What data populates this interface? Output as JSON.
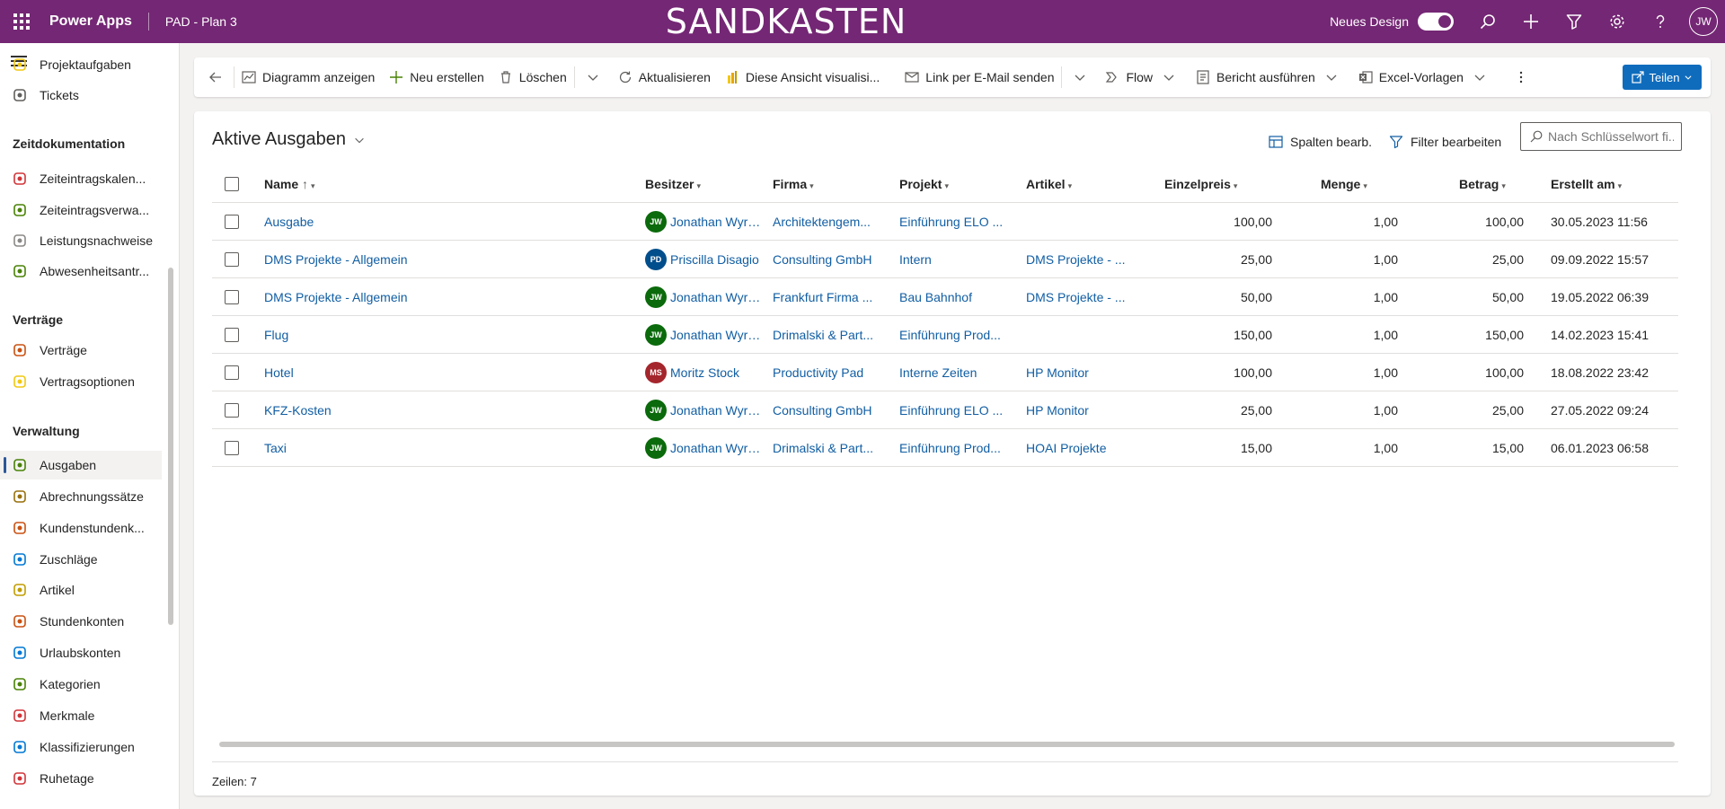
{
  "header": {
    "app_name": "Power Apps",
    "environment": "PAD - Plan 3",
    "banner": "SANDKASTEN",
    "new_design_label": "Neues Design",
    "user_initials": "JW"
  },
  "sidebar": {
    "items": [
      {
        "label": "Projektaufgaben",
        "icon": "tasks-icon",
        "color": "#f2c811"
      },
      {
        "label": "Tickets",
        "icon": "ticket-icon",
        "color": "#605e5c"
      },
      {
        "group": "Zeitdokumentation"
      },
      {
        "label": "Zeiteintragskalen...",
        "icon": "clock-icon",
        "color": "#d13438"
      },
      {
        "label": "Zeiteintragsverwa...",
        "icon": "tools-icon",
        "color": "#498205"
      },
      {
        "label": "Leistungsnachweise",
        "icon": "list-icon",
        "color": "#8a8886"
      },
      {
        "label": "Abwesenheitsantr...",
        "icon": "palm-icon",
        "color": "#498205"
      },
      {
        "group": "Verträge"
      },
      {
        "label": "Verträge",
        "icon": "contract-icon",
        "color": "#ca5010"
      },
      {
        "label": "Vertragsoptionen",
        "icon": "tag-icon",
        "color": "#f2c811"
      },
      {
        "group": "Verwaltung"
      },
      {
        "label": "Ausgaben",
        "icon": "money-icon",
        "color": "#498205",
        "active": true
      },
      {
        "label": "Abrechnungssätze",
        "icon": "stopwatch-icon",
        "color": "#986f0b"
      },
      {
        "label": "Kundenstundenk...",
        "icon": "hours-icon",
        "color": "#ca5010"
      },
      {
        "label": "Zuschläge",
        "icon": "surcharge-icon",
        "color": "#0078d4"
      },
      {
        "label": "Artikel",
        "icon": "article-icon",
        "color": "#c19c00"
      },
      {
        "label": "Stundenkonten",
        "icon": "timer-icon",
        "color": "#ca5010"
      },
      {
        "label": "Urlaubskonten",
        "icon": "vacation-icon",
        "color": "#0078d4"
      },
      {
        "label": "Kategorien",
        "icon": "category-icon",
        "color": "#498205"
      },
      {
        "label": "Merkmale",
        "icon": "feature-icon",
        "color": "#d13438"
      },
      {
        "label": "Klassifizierungen",
        "icon": "classification-icon",
        "color": "#0078d4"
      },
      {
        "label": "Ruhetage",
        "icon": "calendar-icon",
        "color": "#d13438"
      }
    ]
  },
  "commands": {
    "show_chart": "Diagramm anzeigen",
    "new": "Neu erstellen",
    "delete": "Löschen",
    "refresh": "Aktualisieren",
    "visualize": "Diese Ansicht visualisi...",
    "email_link": "Link per E-Mail senden",
    "flow": "Flow",
    "run_report": "Bericht ausführen",
    "excel_templates": "Excel-Vorlagen",
    "share": "Teilen"
  },
  "view": {
    "title": "Aktive Ausgaben",
    "edit_columns": "Spalten bearb.",
    "edit_filters": "Filter bearbeiten",
    "search_placeholder": "Nach Schlüsselwort fi..."
  },
  "table": {
    "columns": {
      "name": "Name",
      "owner": "Besitzer",
      "company": "Firma",
      "project": "Projekt",
      "article": "Artikel",
      "unit_price": "Einzelpreis",
      "quantity": "Menge",
      "amount": "Betrag",
      "created": "Erstellt am"
    },
    "rows": [
      {
        "name": "Ausgabe",
        "owner_initials": "JW",
        "owner_color": "#0b6a0b",
        "owner": "Jonathan Wyrwi...",
        "company": "Architektengem...",
        "project": "Einführung ELO ...",
        "article": "",
        "unit_price": "100,00",
        "quantity": "1,00",
        "amount": "100,00",
        "created": "30.05.2023 11:56"
      },
      {
        "name": "DMS Projekte - Allgemein",
        "owner_initials": "PD",
        "owner_color": "#004e8c",
        "owner": "Priscilla Disagio",
        "company": "Consulting GmbH",
        "project": "Intern",
        "article": "DMS Projekte - ...",
        "unit_price": "25,00",
        "quantity": "1,00",
        "amount": "25,00",
        "created": "09.09.2022 15:57"
      },
      {
        "name": "DMS Projekte - Allgemein",
        "owner_initials": "JW",
        "owner_color": "#0b6a0b",
        "owner": "Jonathan Wyrwi...",
        "company": "Frankfurt Firma ...",
        "project": "Bau Bahnhof",
        "article": "DMS Projekte - ...",
        "unit_price": "50,00",
        "quantity": "1,00",
        "amount": "50,00",
        "created": "19.05.2022 06:39"
      },
      {
        "name": "Flug",
        "owner_initials": "JW",
        "owner_color": "#0b6a0b",
        "owner": "Jonathan Wyrwi...",
        "company": "Drimalski & Part...",
        "project": "Einführung Prod...",
        "article": "",
        "unit_price": "150,00",
        "quantity": "1,00",
        "amount": "150,00",
        "created": "14.02.2023 15:41"
      },
      {
        "name": "Hotel",
        "owner_initials": "MS",
        "owner_color": "#a4262c",
        "owner": "Moritz Stock",
        "company": "Productivity Pad",
        "project": "Interne Zeiten",
        "article": "HP Monitor",
        "unit_price": "100,00",
        "quantity": "1,00",
        "amount": "100,00",
        "created": "18.08.2022 23:42"
      },
      {
        "name": "KFZ-Kosten",
        "owner_initials": "JW",
        "owner_color": "#0b6a0b",
        "owner": "Jonathan Wyrwi...",
        "company": "Consulting GmbH",
        "project": "Einführung ELO ...",
        "article": "HP Monitor",
        "unit_price": "25,00",
        "quantity": "1,00",
        "amount": "25,00",
        "created": "27.05.2022 09:24"
      },
      {
        "name": "Taxi",
        "owner_initials": "JW",
        "owner_color": "#0b6a0b",
        "owner": "Jonathan Wyrwi...",
        "company": "Drimalski & Part...",
        "project": "Einführung Prod...",
        "article": "HOAI Projekte",
        "unit_price": "15,00",
        "quantity": "1,00",
        "amount": "15,00",
        "created": "06.01.2023 06:58"
      }
    ]
  },
  "footer": {
    "rows_count": "Zeilen: 7"
  },
  "colors": {
    "header_bg": "#742774",
    "link": "#115ea3",
    "primary_button": "#0f6cbd"
  }
}
